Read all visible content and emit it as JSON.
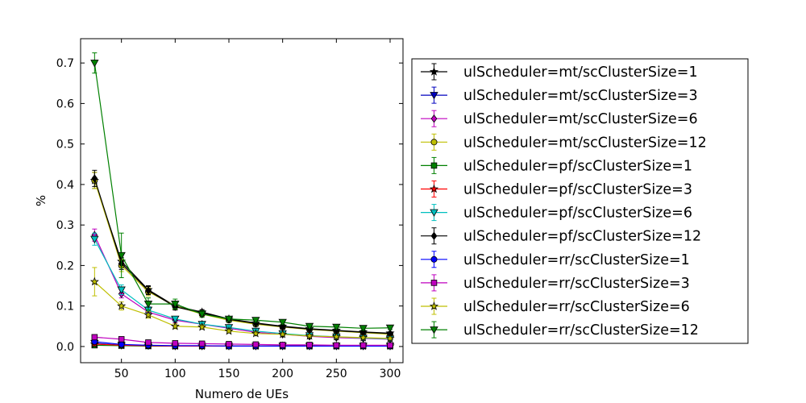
{
  "chart_data": {
    "type": "line",
    "title": "",
    "xlabel": "Numero de UEs",
    "ylabel": "%",
    "xlim": [
      12,
      312
    ],
    "ylim": [
      -0.04,
      0.76
    ],
    "x_ticks": [
      50,
      100,
      150,
      200,
      250,
      300
    ],
    "y_ticks": [
      0.0,
      0.1,
      0.2,
      0.3,
      0.4,
      0.5,
      0.6,
      0.7
    ],
    "x_tick_labels": [
      "50",
      "100",
      "150",
      "200",
      "250",
      "300"
    ],
    "y_tick_labels": [
      "0.0",
      "0.1",
      "0.2",
      "0.3",
      "0.4",
      "0.5",
      "0.6",
      "0.7"
    ],
    "grid": false,
    "legend_position": "right, outside plot area",
    "error_bars": true,
    "x": [
      25,
      50,
      75,
      100,
      125,
      150,
      175,
      200,
      225,
      250,
      275,
      300
    ],
    "series": [
      {
        "name": "ulScheduler=mt/scClusterSize=1",
        "color": "#000000",
        "marker": "star",
        "values": [
          0.41,
          0.21,
          0.14,
          0.1,
          0.085,
          0.068,
          0.058,
          0.05,
          0.044,
          0.04,
          0.036,
          0.033
        ],
        "errors": [
          0.02,
          0.015,
          0.01,
          0.008,
          0.006,
          0.005,
          0.004,
          0.004,
          0.004,
          0.003,
          0.003,
          0.003
        ]
      },
      {
        "name": "ulScheduler=mt/scClusterSize=3",
        "color": "#0000bf",
        "marker": "triangle-down",
        "values": [
          0.008,
          0.003,
          0.002,
          0.001,
          0.001,
          0.001,
          0.001,
          0.001,
          0.001,
          0.001,
          0.001,
          0.001
        ],
        "errors": [
          0.003,
          0.001,
          0.001,
          0.001,
          0.001,
          0.001,
          0.001,
          0.001,
          0.001,
          0.001,
          0.001,
          0.001
        ]
      },
      {
        "name": "ulScheduler=mt/scClusterSize=6",
        "color": "#bf00bf",
        "marker": "diamond",
        "values": [
          0.275,
          0.13,
          0.085,
          0.065,
          0.055,
          0.045,
          0.035,
          0.03,
          0.025,
          0.022,
          0.02,
          0.018
        ],
        "errors": [
          0.015,
          0.01,
          0.008,
          0.006,
          0.005,
          0.004,
          0.003,
          0.003,
          0.003,
          0.002,
          0.002,
          0.002
        ]
      },
      {
        "name": "ulScheduler=mt/scClusterSize=12",
        "color": "#bfbf00",
        "marker": "circle",
        "values": [
          0.41,
          0.2,
          0.135,
          0.1,
          0.08,
          0.065,
          0.055,
          0.048,
          0.042,
          0.038,
          0.034,
          0.03
        ],
        "errors": [
          0.02,
          0.015,
          0.01,
          0.008,
          0.006,
          0.005,
          0.004,
          0.004,
          0.004,
          0.003,
          0.003,
          0.003
        ]
      },
      {
        "name": "ulScheduler=pf/scClusterSize=1",
        "color": "#008000",
        "marker": "square",
        "values": [
          0.003,
          0.002,
          0.001,
          0.001,
          0.001,
          0.001,
          0.001,
          0.001,
          0.001,
          0.001,
          0.001,
          0.001
        ],
        "errors": [
          0.001,
          0.001,
          0.001,
          0.001,
          0.001,
          0.001,
          0.001,
          0.001,
          0.001,
          0.001,
          0.001,
          0.001
        ]
      },
      {
        "name": "ulScheduler=pf/scClusterSize=3",
        "color": "#ff0000",
        "marker": "star",
        "values": [
          0.006,
          0.003,
          0.002,
          0.001,
          0.001,
          0.001,
          0.001,
          0.001,
          0.001,
          0.001,
          0.001,
          0.001
        ],
        "errors": [
          0.002,
          0.001,
          0.001,
          0.001,
          0.001,
          0.001,
          0.001,
          0.001,
          0.001,
          0.001,
          0.001,
          0.001
        ]
      },
      {
        "name": "ulScheduler=pf/scClusterSize=6",
        "color": "#00bfbf",
        "marker": "triangle-down",
        "values": [
          0.265,
          0.14,
          0.09,
          0.068,
          0.055,
          0.047,
          0.038,
          0.032,
          0.027,
          0.024,
          0.021,
          0.019
        ],
        "errors": [
          0.015,
          0.012,
          0.008,
          0.006,
          0.005,
          0.004,
          0.003,
          0.003,
          0.003,
          0.002,
          0.002,
          0.002
        ]
      },
      {
        "name": "ulScheduler=pf/scClusterSize=12",
        "color": "#000000",
        "marker": "diamond",
        "values": [
          0.415,
          0.205,
          0.138,
          0.098,
          0.083,
          0.067,
          0.057,
          0.049,
          0.043,
          0.039,
          0.035,
          0.032
        ],
        "errors": [
          0.02,
          0.015,
          0.01,
          0.008,
          0.006,
          0.005,
          0.004,
          0.004,
          0.004,
          0.003,
          0.003,
          0.003
        ]
      },
      {
        "name": "ulScheduler=rr/scClusterSize=1",
        "color": "#0000ff",
        "marker": "circle",
        "values": [
          0.012,
          0.005,
          0.003,
          0.002,
          0.002,
          0.001,
          0.001,
          0.001,
          0.001,
          0.001,
          0.001,
          0.001
        ],
        "errors": [
          0.004,
          0.002,
          0.001,
          0.001,
          0.001,
          0.001,
          0.001,
          0.001,
          0.001,
          0.001,
          0.001,
          0.001
        ]
      },
      {
        "name": "ulScheduler=rr/scClusterSize=3",
        "color": "#bf00bf",
        "marker": "square",
        "values": [
          0.023,
          0.018,
          0.01,
          0.008,
          0.007,
          0.006,
          0.005,
          0.004,
          0.004,
          0.003,
          0.003,
          0.003
        ],
        "errors": [
          0.005,
          0.004,
          0.003,
          0.002,
          0.002,
          0.002,
          0.001,
          0.001,
          0.001,
          0.001,
          0.001,
          0.001
        ]
      },
      {
        "name": "ulScheduler=rr/scClusterSize=6",
        "color": "#bfbf00",
        "marker": "star",
        "values": [
          0.16,
          0.1,
          0.078,
          0.05,
          0.048,
          0.038,
          0.032,
          0.03,
          0.026,
          0.024,
          0.022,
          0.02
        ],
        "errors": [
          0.035,
          0.01,
          0.008,
          0.006,
          0.005,
          0.004,
          0.004,
          0.003,
          0.003,
          0.003,
          0.002,
          0.002
        ]
      },
      {
        "name": "ulScheduler=rr/scClusterSize=12",
        "color": "#008000",
        "marker": "triangle-down",
        "values": [
          0.7,
          0.225,
          0.105,
          0.105,
          0.08,
          0.068,
          0.065,
          0.06,
          0.05,
          0.048,
          0.045,
          0.046
        ],
        "errors": [
          0.025,
          0.055,
          0.015,
          0.012,
          0.008,
          0.006,
          0.005,
          0.005,
          0.004,
          0.004,
          0.004,
          0.004
        ]
      }
    ]
  }
}
